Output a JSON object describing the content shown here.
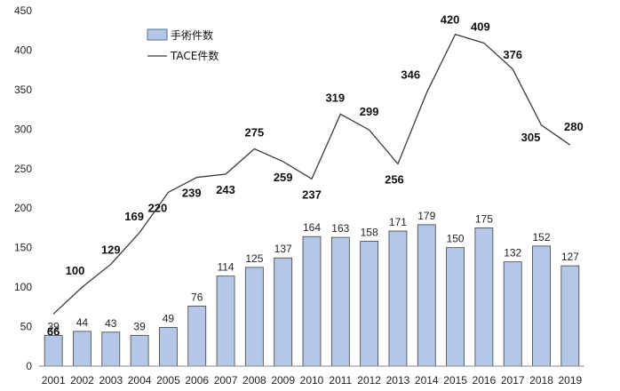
{
  "chart_data": {
    "type": "bar",
    "title": "",
    "xlabel": "",
    "ylabel": "",
    "ylim": [
      0,
      450
    ],
    "yticks": [
      0,
      50,
      100,
      150,
      200,
      250,
      300,
      350,
      400,
      450
    ],
    "grid": false,
    "legend_position": "top-left",
    "categories": [
      "2001",
      "2002",
      "2003",
      "2004",
      "2005",
      "2006",
      "2007",
      "2008",
      "2009",
      "2010",
      "2011",
      "2012",
      "2013",
      "2014",
      "2015",
      "2016",
      "2017",
      "2018",
      "2019"
    ],
    "series": [
      {
        "name": "手術件数",
        "type": "bar",
        "color": "#b4c7e7",
        "values": [
          39,
          44,
          43,
          39,
          49,
          76,
          114,
          125,
          137,
          164,
          163,
          158,
          171,
          179,
          150,
          175,
          132,
          152,
          127
        ]
      },
      {
        "name": "TACE件数",
        "type": "line",
        "color": "#3a3a3a",
        "values": [
          66,
          100,
          129,
          169,
          220,
          239,
          243,
          275,
          259,
          237,
          319,
          299,
          256,
          346,
          420,
          409,
          376,
          305,
          280
        ]
      }
    ]
  }
}
